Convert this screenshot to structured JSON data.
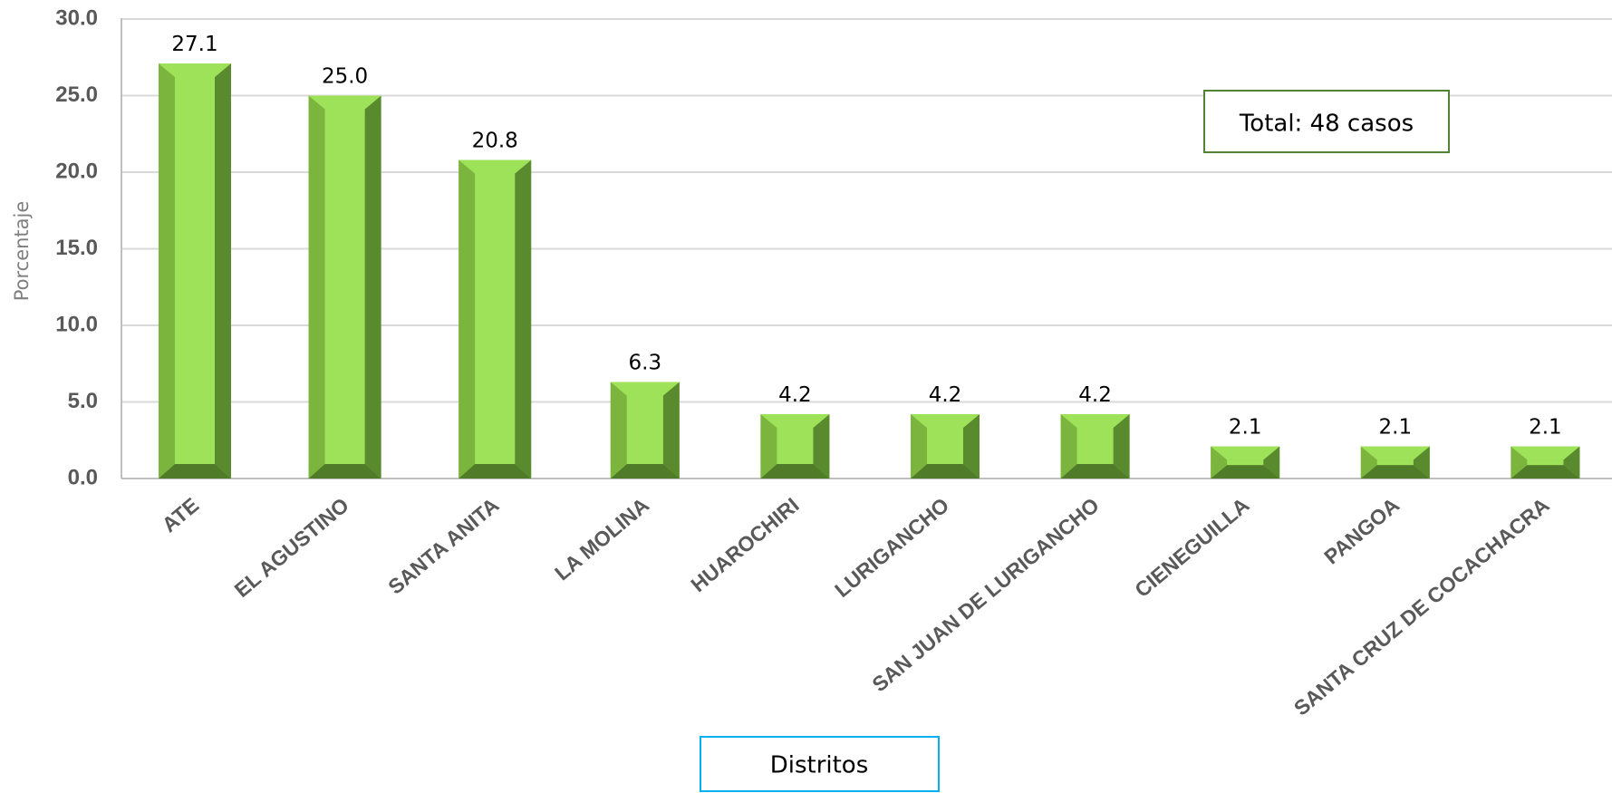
{
  "chart_data": {
    "type": "bar",
    "categories": [
      "ATE",
      "EL AGUSTINO",
      "SANTA ANITA",
      "LA MOLINA",
      "HUAROCHIRI",
      "LURIGANCHO",
      "SAN JUAN DE LURIGANCHO",
      "CIENEGUILLA",
      "PANGOA",
      "SANTA CRUZ DE COCACHACRA"
    ],
    "values": [
      27.1,
      25.0,
      20.8,
      6.3,
      4.2,
      4.2,
      4.2,
      2.1,
      2.1,
      2.1
    ],
    "data_labels": [
      "27.1",
      "25.0",
      "20.8",
      "6.3",
      "4.2",
      "4.2",
      "4.2",
      "2.1",
      "2.1",
      "2.1"
    ],
    "title": "",
    "xlabel": "Distritos",
    "ylabel": "Porcentaje",
    "ylim": [
      0,
      30
    ],
    "yticks": [
      "0.0",
      "5.0",
      "10.0",
      "15.0",
      "20.0",
      "25.0",
      "30.0"
    ],
    "grid": true,
    "legend": "none",
    "annotation": "Total: 48 casos",
    "colors": {
      "bar_front": "#92d050",
      "bar_light": "#9ee25a",
      "bar_side_light": "#7bb53e",
      "bar_side_dark": "#5a8a2e",
      "bar_bottom": "#507c2a",
      "annotation_border": "#548235",
      "xlabel_border": "#00b0f0",
      "grid": "#d9d9d9",
      "axis": "#bfbfbf"
    }
  }
}
